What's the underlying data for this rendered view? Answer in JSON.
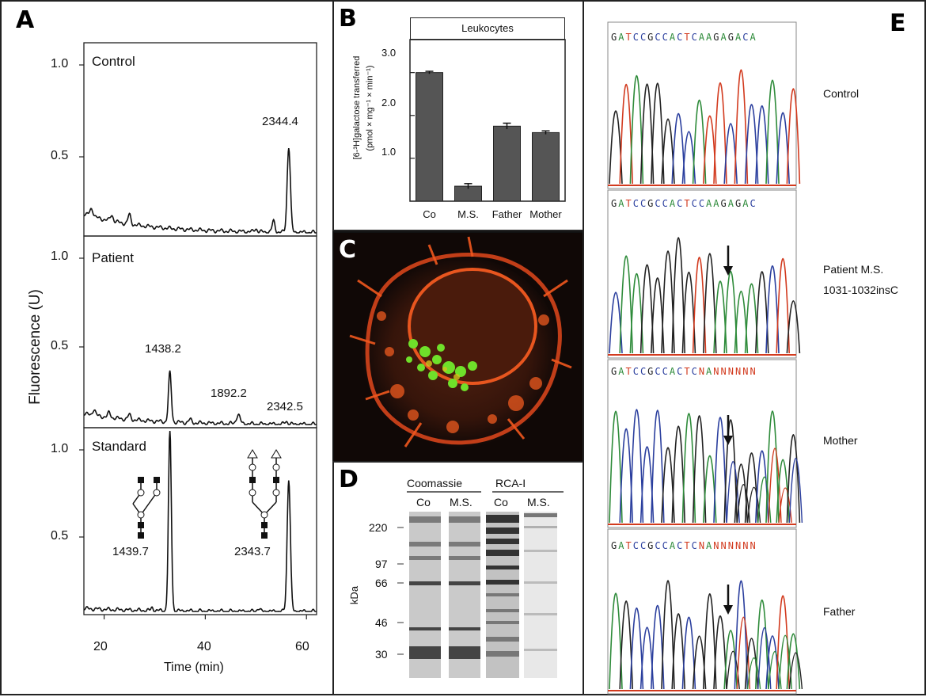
{
  "panels": {
    "A": {
      "letter": "A",
      "y_axis_label": "Fluorescence (U)",
      "x_axis_label": "Time (min)",
      "x_ticks": [
        "20",
        "40",
        "60"
      ],
      "tracks": [
        {
          "name": "Control",
          "ticks": [
            "1.0",
            "0.5"
          ],
          "peak_labels": [
            "2344.4"
          ]
        },
        {
          "name": "Patient",
          "ticks": [
            "1.0",
            "0.5"
          ],
          "peak_labels": [
            "1438.2",
            "1892.2",
            "2342.5"
          ]
        },
        {
          "name": "Standard",
          "ticks": [
            "1.0",
            "0.5"
          ],
          "peak_labels": [
            "1439.7",
            "2343.7"
          ]
        }
      ]
    },
    "B": {
      "letter": "B",
      "title": "Leukocytes",
      "ylabel_line1": "[6-³H]galactose transferred",
      "ylabel_line2": "(pmol × mg⁻¹ × min⁻¹)",
      "y_ticks": [
        "3.0",
        "2.0",
        "1.0"
      ]
    },
    "C": {
      "letter": "C"
    },
    "D": {
      "letter": "D",
      "stain_left": "Coomassie",
      "stain_right": "RCA-I",
      "lanes": [
        "Co",
        "M.S.",
        "Co",
        "M.S."
      ],
      "unit": "kDa",
      "markers": [
        "220",
        "97",
        "66",
        "46",
        "30"
      ]
    },
    "E": {
      "letter": "E",
      "sequences": [
        "GATCCGCCACTCAAGAGACA",
        "GATCCGCCACTCCAAGAGAC",
        "GATCCGCCACTCNANNNNNN",
        "GATCCGCCACTCNANNNNNN"
      ],
      "row_labels": [
        "Control",
        "Patient M.S.",
        "1031-1032insC",
        "Mother",
        "Father"
      ],
      "arrow_color": "#111111",
      "base_colors": {
        "A": "#2e8b3a",
        "C": "#2b3f9e",
        "G": "#222222",
        "T": "#d23a1e",
        "N": "#d23a1e"
      }
    }
  },
  "chart_data": [
    {
      "type": "bar",
      "title": "Leukocytes",
      "categories": [
        "Co",
        "M.S.",
        "Father",
        "Mother"
      ],
      "values": [
        3.0,
        0.35,
        1.75,
        1.6
      ],
      "errors": [
        0.03,
        0.06,
        0.07,
        0.04
      ],
      "xlabel": "",
      "ylabel": "[6-³H]galactose transferred (pmol × mg⁻¹ × min⁻¹)",
      "ylim": [
        0,
        3.4
      ],
      "bar_color": "#555555"
    },
    {
      "type": "line",
      "title": "",
      "xlabel": "Time (min)",
      "ylabel": "Fluorescence (U)",
      "xlim": [
        16,
        62
      ],
      "series": [
        {
          "name": "Control",
          "ylim": [
            0,
            1.2
          ],
          "baseline": 0.12,
          "peaks": [
            {
              "x": 17.5,
              "h": 0.05,
              "w": 0.5
            },
            {
              "x": 21.5,
              "h": 0.04,
              "w": 0.4
            },
            {
              "x": 25,
              "h": 0.06,
              "w": 0.4
            },
            {
              "x": 50,
              "h": 0.02,
              "w": 0.4
            },
            {
              "x": 53.5,
              "h": 0.07,
              "w": 0.4
            },
            {
              "x": 56.5,
              "h": 0.55,
              "w": 0.45
            }
          ]
        },
        {
          "name": "Patient",
          "ylim": [
            0,
            1.2
          ],
          "baseline": 0.07,
          "peaks": [
            {
              "x": 18,
              "h": 0.04,
              "w": 0.4
            },
            {
              "x": 21,
              "h": 0.03,
              "w": 0.4
            },
            {
              "x": 25,
              "h": 0.03,
              "w": 0.4
            },
            {
              "x": 33,
              "h": 0.32,
              "w": 0.4
            },
            {
              "x": 37,
              "h": 0.02,
              "w": 0.4
            },
            {
              "x": 46.5,
              "h": 0.06,
              "w": 0.5
            },
            {
              "x": 56,
              "h": 0.02,
              "w": 0.4
            }
          ]
        },
        {
          "name": "Standard",
          "ylim": [
            0,
            1.2
          ],
          "baseline": 0.02,
          "peaks": [
            {
              "x": 29.5,
              "h": 0.02,
              "w": 0.3
            },
            {
              "x": 33,
              "h": 1.2,
              "w": 0.4
            },
            {
              "x": 50.5,
              "h": 0.02,
              "w": 0.4
            },
            {
              "x": 56.5,
              "h": 0.88,
              "w": 0.45
            }
          ]
        }
      ]
    }
  ]
}
